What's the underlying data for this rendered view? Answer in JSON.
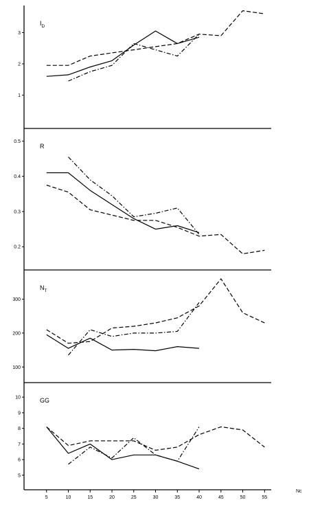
{
  "chart_data": {
    "type": "line",
    "x_axis": {
      "label": "Nc",
      "ticks": [
        5,
        10,
        15,
        20,
        25,
        30,
        35,
        40,
        45,
        50,
        55
      ],
      "tick_labels": [
        "5",
        "10",
        "15",
        "20",
        "25",
        "30",
        "35",
        "40",
        "45",
        "50",
        "55"
      ],
      "range": [
        0,
        57
      ]
    },
    "panels": [
      {
        "label": "ID",
        "label_main": "I",
        "label_sub": "D",
        "ylim": [
          0,
          3.8
        ],
        "yticks": [
          1,
          2,
          3
        ],
        "ytick_labels": [
          "1",
          "2",
          "3"
        ],
        "series": [
          {
            "style": "solid",
            "x": [
              5,
              10,
              15,
              20,
              25,
              30,
              35,
              40
            ],
            "y": [
              1.6,
              1.65,
              1.9,
              2.1,
              2.6,
              3.05,
              2.65,
              2.85
            ]
          },
          {
            "style": "dashed",
            "x": [
              5,
              10,
              15,
              20,
              25,
              30,
              35,
              40,
              45,
              50,
              55
            ],
            "y": [
              1.95,
              1.95,
              2.25,
              2.35,
              2.45,
              2.55,
              2.65,
              2.95,
              2.9,
              3.7,
              3.6
            ]
          },
          {
            "style": "dashdot",
            "x": [
              10,
              15,
              20,
              25,
              30,
              35,
              40
            ],
            "y": [
              1.45,
              1.75,
              1.95,
              2.65,
              2.45,
              2.25,
              2.95
            ]
          }
        ]
      },
      {
        "label": "R",
        "label_main": "R",
        "label_sub": "",
        "ylim": [
          0.14,
          0.53
        ],
        "yticks": [
          0.2,
          0.3,
          0.4,
          0.5
        ],
        "ytick_labels": [
          "0.2",
          "0.3",
          "0.4",
          "0.5"
        ],
        "series": [
          {
            "style": "solid",
            "x": [
              5,
              10,
              15,
              20,
              25,
              30,
              35,
              40
            ],
            "y": [
              0.41,
              0.41,
              0.36,
              0.32,
              0.28,
              0.25,
              0.26,
              0.24
            ]
          },
          {
            "style": "dashed",
            "x": [
              5,
              10,
              15,
              20,
              25,
              30,
              35,
              40,
              45,
              50,
              55
            ],
            "y": [
              0.375,
              0.355,
              0.305,
              0.29,
              0.275,
              0.275,
              0.255,
              0.23,
              0.235,
              0.18,
              0.19
            ]
          },
          {
            "style": "dashdot",
            "x": [
              10,
              15,
              20,
              25,
              30,
              35,
              40
            ],
            "y": [
              0.455,
              0.39,
              0.345,
              0.285,
              0.295,
              0.31,
              0.235
            ]
          }
        ]
      },
      {
        "label": "NT",
        "label_main": "N",
        "label_sub": "T",
        "ylim": [
          60,
          380
        ],
        "yticks": [
          100,
          200,
          300
        ],
        "ytick_labels": [
          "100",
          "200",
          "300"
        ],
        "series": [
          {
            "style": "solid",
            "x": [
              5,
              10,
              15,
              20,
              25,
              30,
              35,
              40
            ],
            "y": [
              195,
              155,
              185,
              150,
              152,
              148,
              160,
              155
            ]
          },
          {
            "style": "dashed",
            "x": [
              5,
              10,
              15,
              20,
              25,
              30,
              35,
              40,
              45,
              50,
              55
            ],
            "y": [
              210,
              170,
              175,
              215,
              220,
              230,
              245,
              280,
              360,
              260,
              230
            ]
          },
          {
            "style": "dashdot",
            "x": [
              10,
              15,
              20,
              25,
              30,
              35,
              40
            ],
            "y": [
              135,
              210,
              190,
              200,
              200,
              205,
              290
            ]
          }
        ]
      },
      {
        "label": "GG",
        "label_main": "GG",
        "label_sub": "",
        "ylim": [
          4.2,
          10.8
        ],
        "yticks": [
          5,
          6,
          7,
          8,
          9,
          10
        ],
        "ytick_labels": [
          "5",
          "6",
          "7",
          "8",
          "9",
          "10"
        ],
        "series": [
          {
            "style": "solid",
            "x": [
              5,
              10,
              15,
              20,
              25,
              30,
              35,
              40
            ],
            "y": [
              8.1,
              6.4,
              7.0,
              6.0,
              6.3,
              6.3,
              5.9,
              5.4
            ]
          },
          {
            "style": "dashed",
            "x": [
              5,
              10,
              15,
              20,
              25,
              30,
              35,
              40,
              45,
              50,
              55
            ],
            "y": [
              8.1,
              6.9,
              7.2,
              7.2,
              7.2,
              6.6,
              6.8,
              7.6,
              8.1,
              7.9,
              6.8
            ]
          },
          {
            "style": "dashdot",
            "x": [
              10,
              15,
              20,
              25,
              30,
              35,
              40
            ],
            "y": [
              5.7,
              6.8,
              6.1,
              7.4,
              6.3,
              5.9,
              8.1
            ]
          }
        ]
      }
    ]
  }
}
